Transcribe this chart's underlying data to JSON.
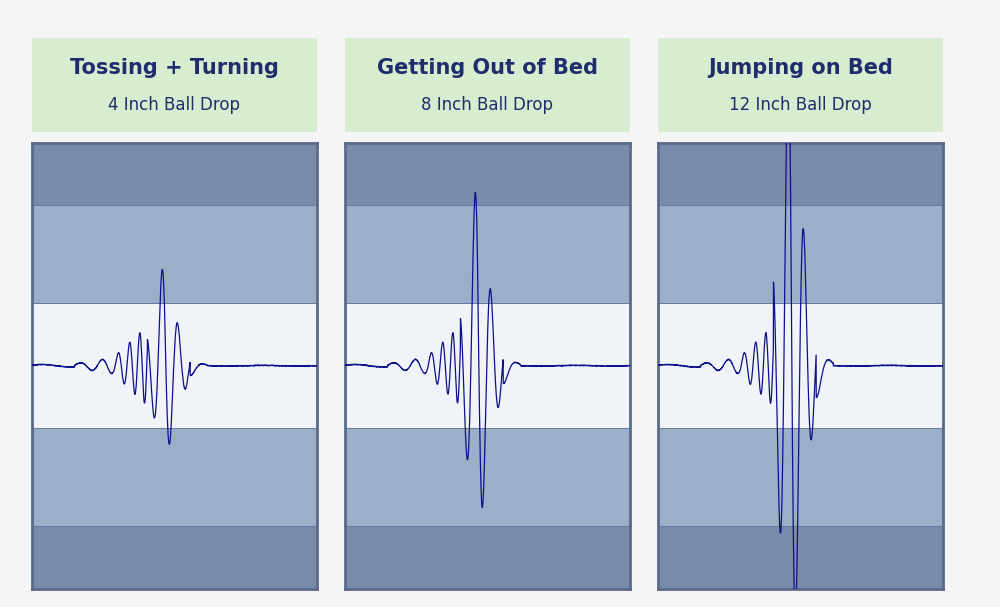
{
  "title_labels": [
    "Tossing + Turning",
    "Getting Out of Bed",
    "Jumping on Bed"
  ],
  "subtitle_labels": [
    "4 Inch Ball Drop",
    "8 Inch Ball Drop",
    "12 Inch Ball Drop"
  ],
  "bg_color": "#f5f5f5",
  "panel_outer_color": "#7a8aaa",
  "panel_top_color": "#7a8aaa",
  "panel_upper_color": "#9ab0c8",
  "panel_center_color": "#f0f4f8",
  "panel_lower_color": "#9ab0c8",
  "panel_bottom_color": "#7a8aaa",
  "label_bg_color": "#d8ecd0",
  "label_text_color": "#1e2d6b",
  "wave_color": "#10108a",
  "amplitudes": [
    1.0,
    1.8,
    3.2
  ],
  "title_fontsize": 15,
  "subtitle_fontsize": 12,
  "band_edges": [
    -1.0,
    -0.72,
    -0.28,
    0.28,
    0.72,
    1.0
  ]
}
